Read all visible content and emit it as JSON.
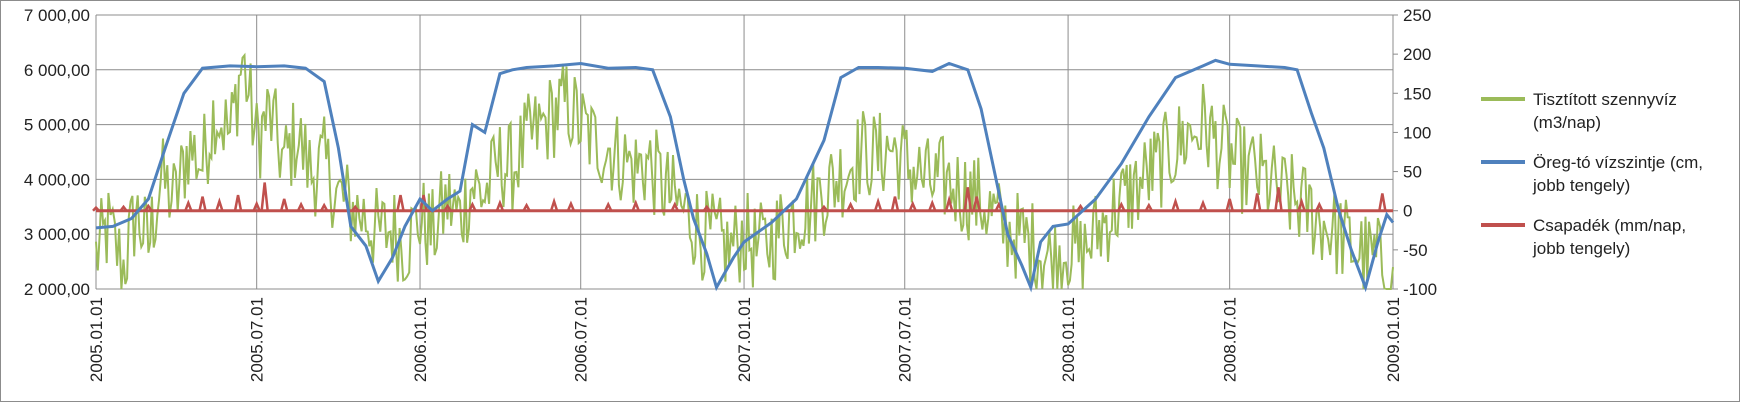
{
  "chart_data": {
    "type": "line",
    "x_range": [
      "2005.01.01",
      "2009.01.01"
    ],
    "x_ticks": [
      "2005.01.01",
      "2005.07.01",
      "2006.01.01",
      "2006.07.01",
      "2007.01.01",
      "2007.07.01",
      "2008.01.01",
      "2008.07.01",
      "2009.01.01"
    ],
    "y_left": {
      "min": 2000,
      "max": 7000,
      "ticks": [
        "2 000,00",
        "3 000,00",
        "4 000,00",
        "5 000,00",
        "6 000,00",
        "7 000,00"
      ]
    },
    "y_right": {
      "min": -100,
      "max": 250,
      "ticks": [
        "-100",
        "-50",
        "0",
        "50",
        "100",
        "150",
        "200",
        "250"
      ]
    },
    "grid": {
      "vertical": true,
      "horizontal": true
    },
    "legend_position": "right",
    "series": [
      {
        "name": "Tisztított szennyvíz (m3/nap)",
        "axis": "left",
        "color": "#9bbb59",
        "points": [
          [
            "2005.01.01",
            2600
          ],
          [
            "2005.01.15",
            3100
          ],
          [
            "2005.02.01",
            2400
          ],
          [
            "2005.02.15",
            3400
          ],
          [
            "2005.03.01",
            2800
          ],
          [
            "2005.03.15",
            4000
          ],
          [
            "2005.04.01",
            3600
          ],
          [
            "2005.04.15",
            4600
          ],
          [
            "2005.05.01",
            4300
          ],
          [
            "2005.05.15",
            5300
          ],
          [
            "2005.06.01",
            4800
          ],
          [
            "2005.06.15",
            6200
          ],
          [
            "2005.07.01",
            4700
          ],
          [
            "2005.07.15",
            5200
          ],
          [
            "2005.08.01",
            4300
          ],
          [
            "2005.08.15",
            4800
          ],
          [
            "2005.09.01",
            4100
          ],
          [
            "2005.09.15",
            4300
          ],
          [
            "2005.10.01",
            3700
          ],
          [
            "2005.10.15",
            3500
          ],
          [
            "2005.11.01",
            3300
          ],
          [
            "2005.11.15",
            3000
          ],
          [
            "2005.12.01",
            3100
          ],
          [
            "2005.12.15",
            2800
          ],
          [
            "2006.01.01",
            3300
          ],
          [
            "2006.01.15",
            3000
          ],
          [
            "2006.02.01",
            3600
          ],
          [
            "2006.02.15",
            3300
          ],
          [
            "2006.03.01",
            3900
          ],
          [
            "2006.03.15",
            3700
          ],
          [
            "2006.04.01",
            4300
          ],
          [
            "2006.04.15",
            4200
          ],
          [
            "2006.05.01",
            4700
          ],
          [
            "2006.05.15",
            4900
          ],
          [
            "2006.06.01",
            5200
          ],
          [
            "2006.06.15",
            5400
          ],
          [
            "2006.07.01",
            5000
          ],
          [
            "2006.07.15",
            4700
          ],
          [
            "2006.08.01",
            4600
          ],
          [
            "2006.08.15",
            4400
          ],
          [
            "2006.09.01",
            4200
          ],
          [
            "2006.09.15",
            4300
          ],
          [
            "2006.10.01",
            3900
          ],
          [
            "2006.10.15",
            3600
          ],
          [
            "2006.11.01",
            3300
          ],
          [
            "2006.11.15",
            3000
          ],
          [
            "2006.12.01",
            2900
          ],
          [
            "2006.12.15",
            2700
          ],
          [
            "2007.01.01",
            3000
          ],
          [
            "2007.01.15",
            2700
          ],
          [
            "2007.02.01",
            2900
          ],
          [
            "2007.02.15",
            3200
          ],
          [
            "2007.03.01",
            3400
          ],
          [
            "2007.03.15",
            3500
          ],
          [
            "2007.04.01",
            3800
          ],
          [
            "2007.04.15",
            4000
          ],
          [
            "2007.05.01",
            4300
          ],
          [
            "2007.05.15",
            4500
          ],
          [
            "2007.06.01",
            4400
          ],
          [
            "2007.06.15",
            4600
          ],
          [
            "2007.07.01",
            4300
          ],
          [
            "2007.07.15",
            4100
          ],
          [
            "2007.08.01",
            3900
          ],
          [
            "2007.08.15",
            4000
          ],
          [
            "2007.09.01",
            3800
          ],
          [
            "2007.09.15",
            3700
          ],
          [
            "2007.10.01",
            3500
          ],
          [
            "2007.10.15",
            3200
          ],
          [
            "2007.11.01",
            3000
          ],
          [
            "2007.11.15",
            2900
          ],
          [
            "2007.12.01",
            2700
          ],
          [
            "2007.12.15",
            2500
          ],
          [
            "2008.01.01",
            2800
          ],
          [
            "2008.01.15",
            2600
          ],
          [
            "2008.02.01",
            3000
          ],
          [
            "2008.02.15",
            3300
          ],
          [
            "2008.03.01",
            3600
          ],
          [
            "2008.03.15",
            3800
          ],
          [
            "2008.04.01",
            4100
          ],
          [
            "2008.04.15",
            4300
          ],
          [
            "2008.05.01",
            4600
          ],
          [
            "2008.05.15",
            4800
          ],
          [
            "2008.06.01",
            5000
          ],
          [
            "2008.06.15",
            4700
          ],
          [
            "2008.07.01",
            4400
          ],
          [
            "2008.07.15",
            4200
          ],
          [
            "2008.08.01",
            4100
          ],
          [
            "2008.08.15",
            3900
          ],
          [
            "2008.09.01",
            3700
          ],
          [
            "2008.09.15",
            3600
          ],
          [
            "2008.10.01",
            3400
          ],
          [
            "2008.10.15",
            3200
          ],
          [
            "2008.11.01",
            3000
          ],
          [
            "2008.11.15",
            2800
          ],
          [
            "2008.12.01",
            2600
          ],
          [
            "2008.12.15",
            2500
          ],
          [
            "2009.01.01",
            2400
          ]
        ]
      },
      {
        "name": "Öreg-tó vízszintje (cm, jobb tengely)",
        "axis": "right",
        "color": "#4f81bd",
        "points": [
          [
            "2005.01.01",
            -22
          ],
          [
            "2005.01.20",
            -20
          ],
          [
            "2005.02.10",
            -10
          ],
          [
            "2005.03.01",
            15
          ],
          [
            "2005.03.20",
            80
          ],
          [
            "2005.04.10",
            150
          ],
          [
            "2005.05.01",
            182
          ],
          [
            "2005.06.01",
            185
          ],
          [
            "2005.07.01",
            184
          ],
          [
            "2005.08.01",
            185
          ],
          [
            "2005.08.25",
            182
          ],
          [
            "2005.09.15",
            165
          ],
          [
            "2005.10.01",
            80
          ],
          [
            "2005.10.15",
            -20
          ],
          [
            "2005.11.01",
            -45
          ],
          [
            "2005.11.15",
            -90
          ],
          [
            "2005.12.01",
            -60
          ],
          [
            "2005.12.15",
            -20
          ],
          [
            "2006.01.01",
            15
          ],
          [
            "2006.01.15",
            0
          ],
          [
            "2006.02.01",
            15
          ],
          [
            "2006.02.15",
            25
          ],
          [
            "2006.03.01",
            110
          ],
          [
            "2006.03.15",
            100
          ],
          [
            "2006.04.01",
            175
          ],
          [
            "2006.04.15",
            180
          ],
          [
            "2006.05.01",
            183
          ],
          [
            "2006.06.01",
            185
          ],
          [
            "2006.07.01",
            188
          ],
          [
            "2006.08.01",
            182
          ],
          [
            "2006.09.01",
            183
          ],
          [
            "2006.09.20",
            180
          ],
          [
            "2006.10.10",
            120
          ],
          [
            "2006.10.25",
            40
          ],
          [
            "2006.11.05",
            -10
          ],
          [
            "2006.11.20",
            -55
          ],
          [
            "2006.12.01",
            -98
          ],
          [
            "2006.12.20",
            -60
          ],
          [
            "2007.01.01",
            -40
          ],
          [
            "2007.02.01",
            -15
          ],
          [
            "2007.03.01",
            15
          ],
          [
            "2007.04.01",
            90
          ],
          [
            "2007.04.20",
            170
          ],
          [
            "2007.05.10",
            183
          ],
          [
            "2007.06.01",
            183
          ],
          [
            "2007.07.01",
            182
          ],
          [
            "2007.08.01",
            178
          ],
          [
            "2007.08.20",
            188
          ],
          [
            "2007.09.10",
            180
          ],
          [
            "2007.09.25",
            130
          ],
          [
            "2007.10.10",
            50
          ],
          [
            "2007.10.25",
            -30
          ],
          [
            "2007.11.10",
            -70
          ],
          [
            "2007.11.20",
            -98
          ],
          [
            "2007.12.01",
            -40
          ],
          [
            "2007.12.15",
            -20
          ],
          [
            "2008.01.01",
            -17
          ],
          [
            "2008.02.01",
            15
          ],
          [
            "2008.03.01",
            60
          ],
          [
            "2008.04.01",
            120
          ],
          [
            "2008.05.01",
            170
          ],
          [
            "2008.06.01",
            185
          ],
          [
            "2008.06.15",
            192
          ],
          [
            "2008.07.01",
            187
          ],
          [
            "2008.08.01",
            185
          ],
          [
            "2008.09.01",
            183
          ],
          [
            "2008.09.15",
            180
          ],
          [
            "2008.10.01",
            125
          ],
          [
            "2008.10.15",
            80
          ],
          [
            "2008.11.01",
            0
          ],
          [
            "2008.11.15",
            -50
          ],
          [
            "2008.12.01",
            -98
          ],
          [
            "2008.12.15",
            -40
          ],
          [
            "2008.12.25",
            -5
          ],
          [
            "2009.01.01",
            -15
          ]
        ]
      },
      {
        "name": "Csapadék (mm/nap, jobb tengely)",
        "axis": "right",
        "color": "#c0504d",
        "baseline": 0,
        "spikes": [
          [
            "2005.01.01",
            4
          ],
          [
            "2005.02.01",
            5
          ],
          [
            "2005.03.01",
            6
          ],
          [
            "2005.04.15",
            10
          ],
          [
            "2005.05.01",
            18
          ],
          [
            "2005.05.20",
            12
          ],
          [
            "2005.06.10",
            20
          ],
          [
            "2005.07.01",
            9
          ],
          [
            "2005.07.10",
            36
          ],
          [
            "2005.08.01",
            15
          ],
          [
            "2005.08.20",
            8
          ],
          [
            "2005.09.15",
            7
          ],
          [
            "2005.10.20",
            5
          ],
          [
            "2005.12.10",
            20
          ],
          [
            "2006.01.05",
            20
          ],
          [
            "2006.02.01",
            6
          ],
          [
            "2006.03.01",
            8
          ],
          [
            "2006.04.01",
            10
          ],
          [
            "2006.05.01",
            7
          ],
          [
            "2006.06.01",
            12
          ],
          [
            "2006.06.20",
            9
          ],
          [
            "2006.08.01",
            8
          ],
          [
            "2006.09.01",
            10
          ],
          [
            "2006.10.15",
            8
          ],
          [
            "2006.11.20",
            5
          ],
          [
            "2007.04.01",
            5
          ],
          [
            "2007.05.01",
            8
          ],
          [
            "2007.06.01",
            12
          ],
          [
            "2007.06.20",
            18
          ],
          [
            "2007.07.10",
            9
          ],
          [
            "2007.08.01",
            10
          ],
          [
            "2007.08.20",
            14
          ],
          [
            "2007.09.10",
            30
          ],
          [
            "2007.09.20",
            18
          ],
          [
            "2007.10.15",
            8
          ],
          [
            "2008.01.15",
            6
          ],
          [
            "2008.03.01",
            8
          ],
          [
            "2008.04.01",
            7
          ],
          [
            "2008.05.01",
            12
          ],
          [
            "2008.06.01",
            10
          ],
          [
            "2008.07.01",
            15
          ],
          [
            "2008.08.01",
            22
          ],
          [
            "2008.08.25",
            30
          ],
          [
            "2008.09.20",
            12
          ],
          [
            "2008.10.10",
            8
          ],
          [
            "2008.12.20",
            22
          ]
        ]
      }
    ]
  }
}
